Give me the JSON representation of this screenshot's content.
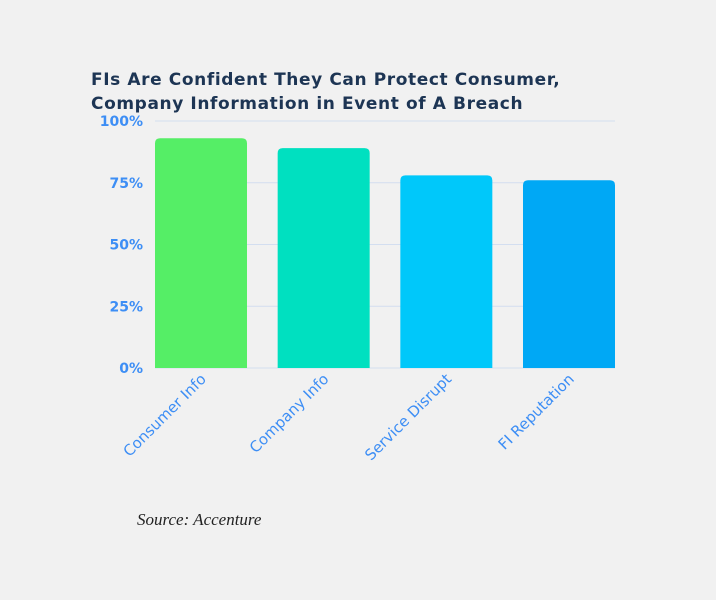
{
  "chart_data": {
    "type": "bar",
    "title": [
      "FIs Are Confident They Can Protect Consumer,",
      "Company Information in Event of A Breach"
    ],
    "categories": [
      "Consumer Info",
      "Company Info",
      "Service Disrupt",
      "FI Reputation"
    ],
    "values": [
      93,
      89,
      78,
      76
    ],
    "colors": [
      "#55ee66",
      "#00e0c0",
      "#00c8fa",
      "#00a8f5"
    ],
    "ylim": [
      0,
      100
    ],
    "yticks": [
      0,
      25,
      50,
      75,
      100
    ],
    "ytick_labels": [
      "0%",
      "25%",
      "50%",
      "75%",
      "100%"
    ],
    "grid": true,
    "xlabel": "",
    "ylabel": ""
  },
  "source": "Source: Accenture"
}
